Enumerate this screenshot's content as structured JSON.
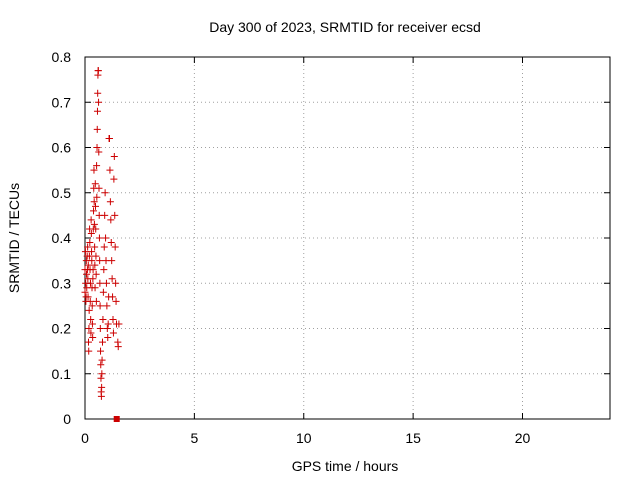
{
  "chart_data": {
    "type": "scatter",
    "title": "Day 300 of 2023, SRMTID for receiver ecsd",
    "xlabel": "GPS time / hours",
    "ylabel": "SRMTID / TECUs",
    "xlim": [
      0,
      24
    ],
    "ylim": [
      0,
      0.8
    ],
    "xticks": [
      0,
      5,
      10,
      15,
      20
    ],
    "xtick_labels": [
      "0",
      "5",
      "10",
      "15",
      "20"
    ],
    "yticks": [
      0,
      0.1,
      0.2,
      0.3,
      0.4,
      0.5,
      0.6,
      0.7,
      0.8
    ],
    "ytick_labels": [
      "0",
      "0.1",
      "0.2",
      "0.3",
      "0.4",
      "0.5",
      "0.6",
      "0.7",
      "0.8"
    ],
    "grid": true,
    "marker": "plus",
    "color": "#cc0000",
    "series": [
      {
        "name": "SRMTID",
        "points": [
          [
            0.0,
            0.28
          ],
          [
            0.0,
            0.33
          ],
          [
            0.02,
            0.37
          ],
          [
            0.03,
            0.3
          ],
          [
            0.04,
            0.26
          ],
          [
            0.05,
            0.27
          ],
          [
            0.06,
            0.35
          ],
          [
            0.07,
            0.32
          ],
          [
            0.08,
            0.29
          ],
          [
            0.1,
            0.36
          ],
          [
            0.11,
            0.33
          ],
          [
            0.12,
            0.38
          ],
          [
            0.13,
            0.31
          ],
          [
            0.14,
            0.27
          ],
          [
            0.15,
            0.34
          ],
          [
            0.16,
            0.17
          ],
          [
            0.17,
            0.15
          ],
          [
            0.18,
            0.2
          ],
          [
            0.19,
            0.24
          ],
          [
            0.2,
            0.36
          ],
          [
            0.21,
            0.42
          ],
          [
            0.22,
            0.39
          ],
          [
            0.23,
            0.33
          ],
          [
            0.24,
            0.26
          ],
          [
            0.25,
            0.3
          ],
          [
            0.26,
            0.22
          ],
          [
            0.27,
            0.19
          ],
          [
            0.28,
            0.44
          ],
          [
            0.29,
            0.41
          ],
          [
            0.3,
            0.37
          ],
          [
            0.31,
            0.35
          ],
          [
            0.32,
            0.29
          ],
          [
            0.33,
            0.25
          ],
          [
            0.34,
            0.21
          ],
          [
            0.35,
            0.18
          ],
          [
            0.36,
            0.31
          ],
          [
            0.37,
            0.33
          ],
          [
            0.38,
            0.42
          ],
          [
            0.39,
            0.46
          ],
          [
            0.4,
            0.51
          ],
          [
            0.41,
            0.55
          ],
          [
            0.42,
            0.48
          ],
          [
            0.43,
            0.43
          ],
          [
            0.44,
            0.38
          ],
          [
            0.45,
            0.34
          ],
          [
            0.46,
            0.29
          ],
          [
            0.47,
            0.52
          ],
          [
            0.48,
            0.47
          ],
          [
            0.49,
            0.42
          ],
          [
            0.5,
            0.36
          ],
          [
            0.51,
            0.32
          ],
          [
            0.52,
            0.26
          ],
          [
            0.53,
            0.56
          ],
          [
            0.54,
            0.49
          ],
          [
            0.55,
            0.6
          ],
          [
            0.56,
            0.64
          ],
          [
            0.57,
            0.68
          ],
          [
            0.58,
            0.72
          ],
          [
            0.59,
            0.76
          ],
          [
            0.6,
            0.77
          ],
          [
            0.61,
            0.77
          ],
          [
            0.62,
            0.7
          ],
          [
            0.63,
            0.59
          ],
          [
            0.64,
            0.51
          ],
          [
            0.65,
            0.45
          ],
          [
            0.66,
            0.4
          ],
          [
            0.67,
            0.35
          ],
          [
            0.68,
            0.3
          ],
          [
            0.69,
            0.25
          ],
          [
            0.7,
            0.2
          ],
          [
            0.71,
            0.15
          ],
          [
            0.72,
            0.12
          ],
          [
            0.73,
            0.09
          ],
          [
            0.74,
            0.06
          ],
          [
            0.75,
            0.05
          ],
          [
            0.76,
            0.07
          ],
          [
            0.77,
            0.1
          ],
          [
            0.78,
            0.13
          ],
          [
            0.8,
            0.17
          ],
          [
            0.82,
            0.22
          ],
          [
            0.84,
            0.28
          ],
          [
            0.86,
            0.33
          ],
          [
            0.88,
            0.38
          ],
          [
            0.9,
            0.45
          ],
          [
            0.92,
            0.5
          ],
          [
            0.94,
            0.4
          ],
          [
            0.96,
            0.35
          ],
          [
            0.98,
            0.3
          ],
          [
            1.0,
            0.25
          ],
          [
            1.02,
            0.2
          ],
          [
            1.04,
            0.18
          ],
          [
            1.06,
            0.21
          ],
          [
            1.08,
            0.27
          ],
          [
            1.1,
            0.62
          ],
          [
            1.12,
            0.62
          ],
          [
            1.14,
            0.55
          ],
          [
            1.16,
            0.48
          ],
          [
            1.18,
            0.44
          ],
          [
            1.2,
            0.39
          ],
          [
            1.22,
            0.35
          ],
          [
            1.24,
            0.31
          ],
          [
            1.26,
            0.27
          ],
          [
            1.28,
            0.22
          ],
          [
            1.3,
            0.19
          ],
          [
            1.32,
            0.53
          ],
          [
            1.34,
            0.58
          ],
          [
            1.36,
            0.45
          ],
          [
            1.38,
            0.38
          ],
          [
            1.4,
            0.3
          ],
          [
            1.42,
            0.26
          ],
          [
            1.44,
            0.21
          ],
          [
            1.5,
            0.17
          ],
          [
            1.52,
            0.16
          ],
          [
            1.55,
            0.21
          ]
        ]
      },
      {
        "name": "zero marker",
        "points": [
          [
            1.45,
            0.0
          ]
        ],
        "marker": "square"
      }
    ]
  }
}
